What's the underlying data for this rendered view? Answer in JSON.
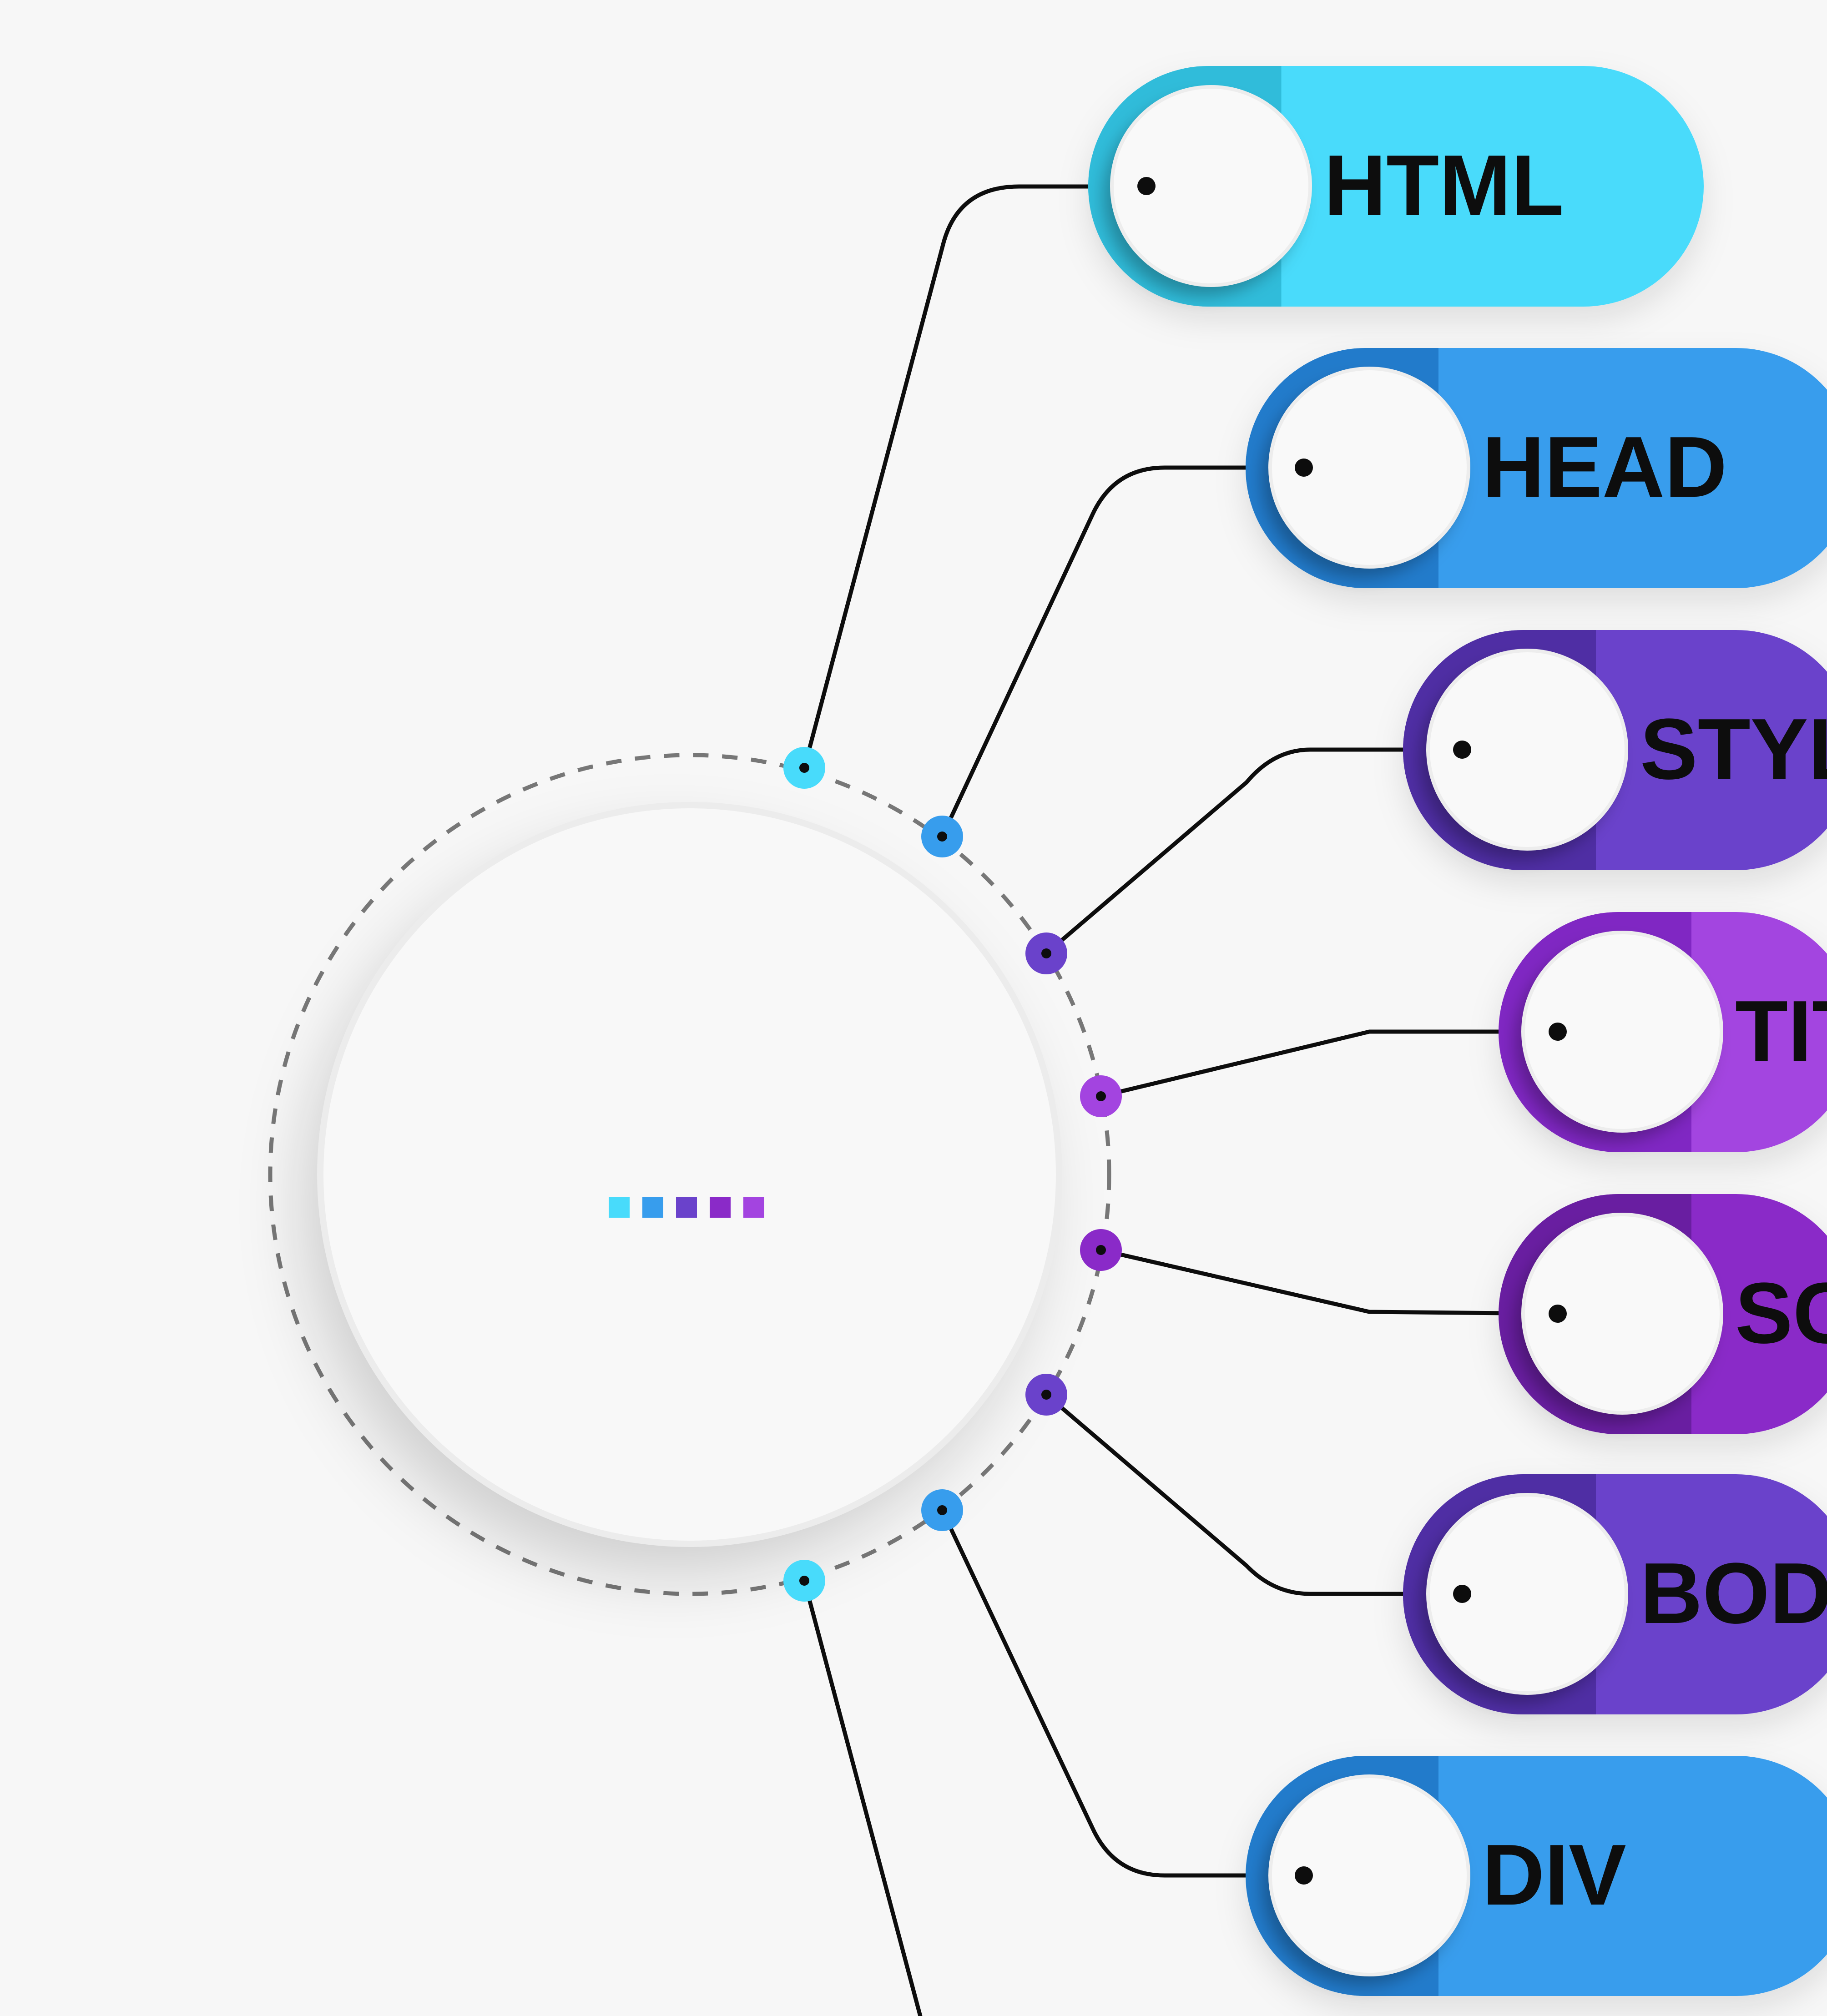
{
  "diagram": {
    "center": {
      "color_squares": [
        "#48dbfb",
        "#379ded",
        "#6a42cb",
        "#8a2ac8",
        "#a344e0"
      ]
    },
    "nodes": [
      {
        "id": "html",
        "label": "HTML",
        "color": "#48dbfb",
        "shade": "#2cb6d4"
      },
      {
        "id": "head",
        "label": "HEAD",
        "color": "#379ded",
        "shade": "#1f76c4"
      },
      {
        "id": "style",
        "label": "STYLE",
        "color": "#6a42cb",
        "shade": "#4a2a9e"
      },
      {
        "id": "title",
        "label": "TITLE",
        "color": "#a344e0",
        "shade": "#7a22bd"
      },
      {
        "id": "script",
        "label": "SCRIPT",
        "color": "#8a2ac8",
        "shade": "#631c9a"
      },
      {
        "id": "body",
        "label": "BODY",
        "color": "#6a42cb",
        "shade": "#4a2a9e"
      },
      {
        "id": "div",
        "label": "DIV",
        "color": "#379ded",
        "shade": "#1f76c4"
      },
      {
        "id": "extra",
        "label": "",
        "color": "#48dbfb",
        "shade": "#2cb6d4"
      }
    ]
  }
}
